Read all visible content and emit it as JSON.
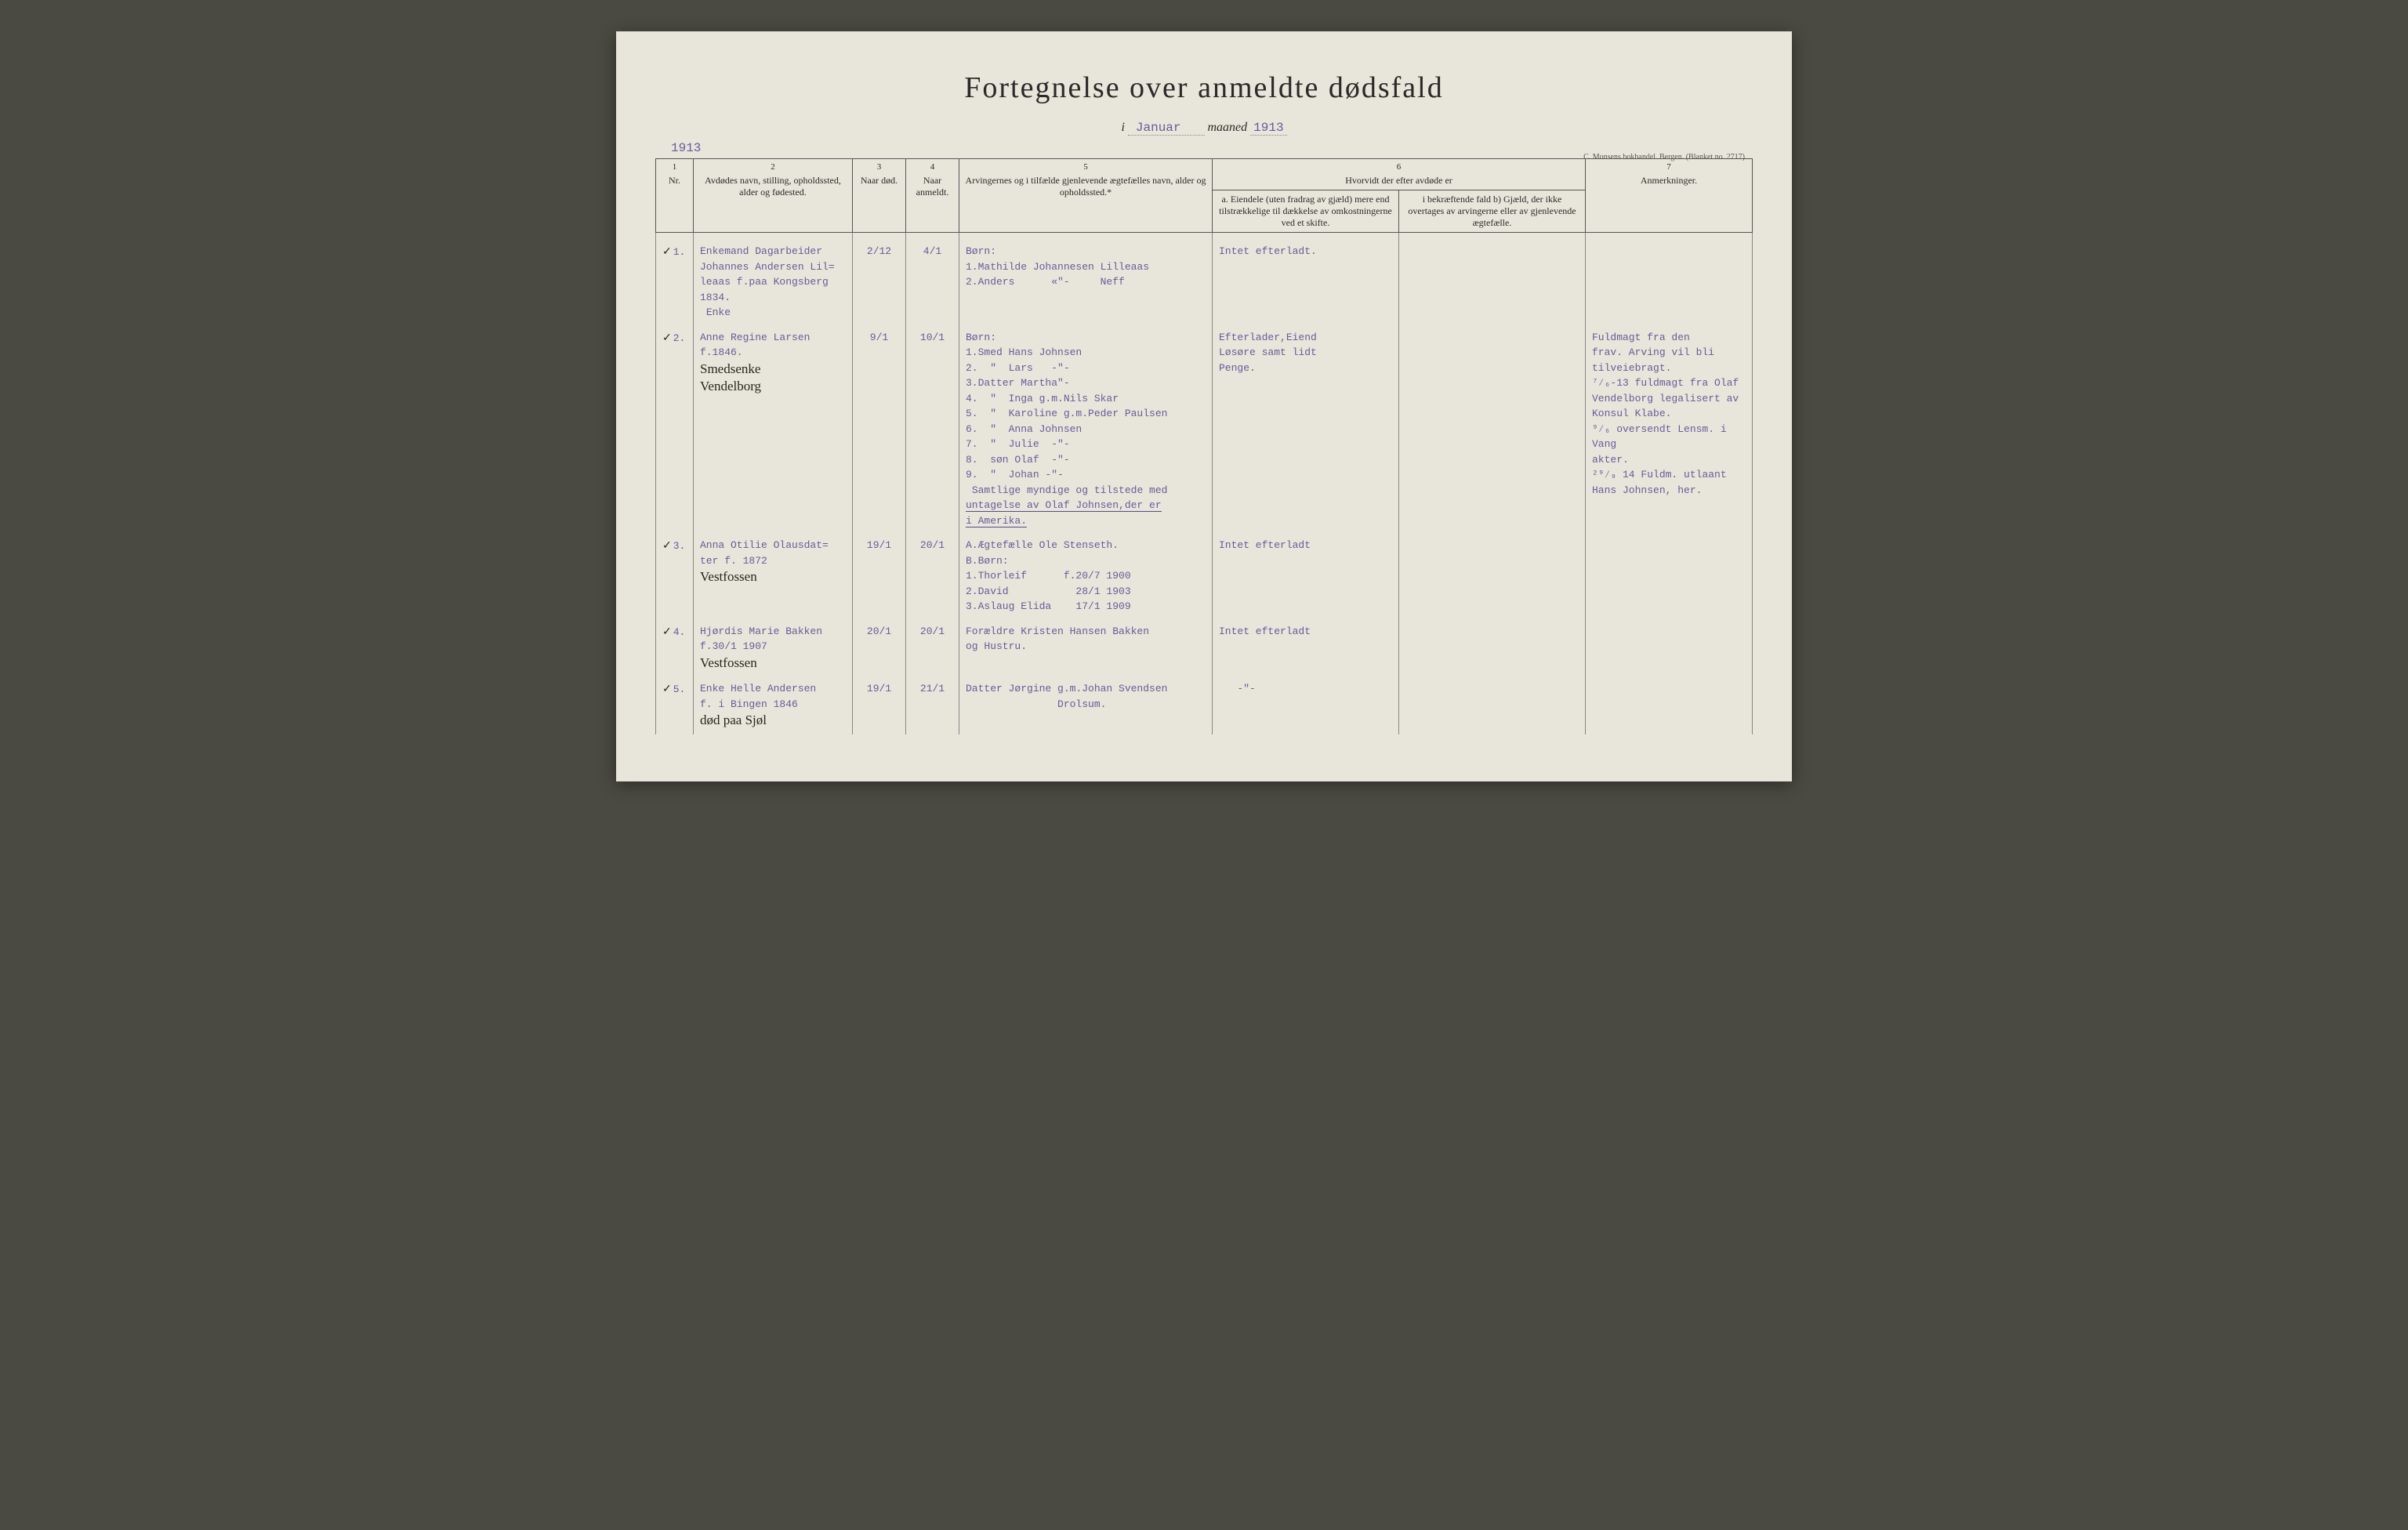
{
  "title": "Fortegnelse over anmeldte dødsfald",
  "subtitle": {
    "prefix_i": "i",
    "month": "Januar",
    "maaned_label": "maaned",
    "year_right": "1913"
  },
  "year_left": "1913",
  "printer_note": "C. Monsens bokhandel. Bergen. (Blanket no. 2717)",
  "columns": {
    "c1_num": "1",
    "c1_label": "Nr.",
    "c2_num": "2",
    "c2_label": "Avdødes navn, stilling, opholdssted, alder og fødested.",
    "c3_num": "3",
    "c3_label": "Naar død.",
    "c4_num": "4",
    "c4_label": "Naar anmeldt.",
    "c5_num": "5",
    "c5_label": "Arvingernes og i tilfælde gjenlevende ægtefælles navn, alder og opholdssted.*",
    "c6_num": "6",
    "c6_label": "Hvorvidt der efter avdøde er",
    "c6a_label": "a. Eiendele (uten fradrag av gjæld) mere end tilstrækkelige til dækkelse av omkostningerne ved et skifte.",
    "c6b_label": "i bekræftende fald b) Gjæld, der ikke overtages av arvingerne eller av gjenlevende ægtefælle.",
    "c7_num": "7",
    "c7_label": "Anmerkninger."
  },
  "rows": [
    {
      "nr": "1.",
      "name_typed": "Enkemand Dagarbeider\nJohannes Andersen Lil=\nleaas f.paa Kongsberg\n1834.\n Enke",
      "name_hand": "",
      "dod": "2/12",
      "anmeldt": "4/1",
      "arvinger": "Børn:\n1.Mathilde Johannesen Lilleaas\n2.Anders      «\"-     Neff",
      "col6a": "Intet efterladt.",
      "col6b": "",
      "remarks": ""
    },
    {
      "nr": "2.",
      "name_typed": "Anne Regine Larsen\nf.1846.",
      "name_hand": "Smedsenke\nVendelborg",
      "dod": "9/1",
      "anmeldt": "10/1",
      "arvinger": "Børn:\n1.Smed Hans Johnsen\n2.  \"  Lars   -\"-\n3.Datter Martha\"-\n4.  \"  Inga g.m.Nils Skar\n5.  \"  Karoline g.m.Peder Paulsen\n6.  \"  Anna Johnsen\n7.  \"  Julie  -\"-\n8.  søn Olaf  -\"-\n9.  \"  Johan -\"-\n Samtlige myndige og tilstede med\nuntagelse av Olaf Johnsen,der er\ni Amerika.",
      "col6a": "Efterlader,Eiend\nLøsøre samt lidt\nPenge.",
      "col6b": "",
      "remarks": "Fuldmagt fra den\nfrav. Arving vil bli\ntilveiebragt.\n⁷⁄₆-13 fuldmagt fra Olaf\nVendelborg legalisert av\nKonsul Klabe.\n⁹⁄₆ oversendt Lensm. i Vang\nakter.\n²⁹⁄₉ 14 Fuldm. utlaant\nHans Johnsen, her."
    },
    {
      "nr": "3.",
      "name_typed": "Anna Otilie Olausdat=\nter f. 1872",
      "name_hand": "Vestfossen",
      "dod": "19/1",
      "anmeldt": "20/1",
      "arvinger": "A.Ægtefælle Ole Stenseth.\nB.Børn:\n1.Thorleif      f.20/7 1900\n2.David           28/1 1903\n3.Aslaug Elida    17/1 1909",
      "col6a": "Intet efterladt",
      "col6b": "",
      "remarks": ""
    },
    {
      "nr": "4.",
      "name_typed": "Hjørdis Marie Bakken\nf.30/1 1907",
      "name_hand": "Vestfossen",
      "dod": "20/1",
      "anmeldt": "20/1",
      "arvinger": "Forældre Kristen Hansen Bakken\nog Hustru.",
      "col6a": "Intet efterladt",
      "col6b": "",
      "remarks": ""
    },
    {
      "nr": "5.",
      "name_typed": "Enke Helle Andersen\nf. i Bingen 1846",
      "name_hand": "død paa Sjøl",
      "dod": "19/1",
      "anmeldt": "21/1",
      "arvinger": "Datter Jørgine g.m.Johan Svendsen\n               Drolsum.",
      "col6a": "   -\"-",
      "col6b": "",
      "remarks": ""
    }
  ]
}
